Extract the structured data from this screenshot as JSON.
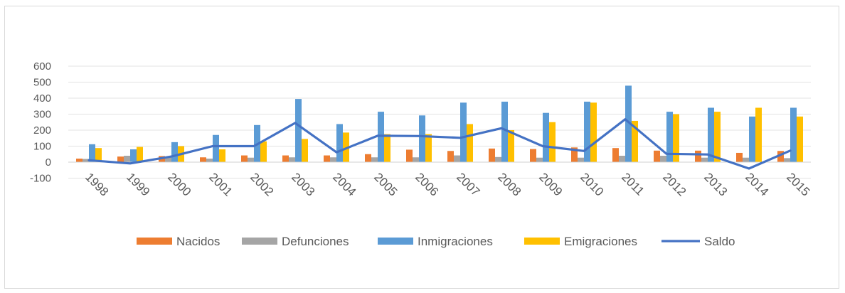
{
  "chart_data": {
    "type": "bar",
    "categories": [
      "1998",
      "1999",
      "2000",
      "2001",
      "2002",
      "2003",
      "2004",
      "2005",
      "2006",
      "2007",
      "2008",
      "2009",
      "2010",
      "2011",
      "2012",
      "2013",
      "2014",
      "2015"
    ],
    "ylim": [
      -100,
      600
    ],
    "yticks": [
      -100,
      0,
      100,
      200,
      300,
      400,
      500,
      600
    ],
    "grid": true,
    "legend_position": "bottom",
    "series": [
      {
        "name": "Nacidos",
        "kind": "bar",
        "color": "#ED7D31",
        "values": [
          22,
          35,
          38,
          30,
          42,
          42,
          42,
          50,
          78,
          70,
          85,
          82,
          92,
          88,
          72,
          72,
          58,
          70
        ]
      },
      {
        "name": "Defunciones",
        "kind": "bar",
        "color": "#A5A5A5",
        "values": [
          20,
          40,
          28,
          22,
          28,
          30,
          30,
          30,
          30,
          42,
          32,
          28,
          28,
          40,
          40,
          28,
          28,
          25
        ]
      },
      {
        "name": "Inmigraciones",
        "kind": "bar",
        "color": "#5B9BD5",
        "values": [
          112,
          80,
          125,
          170,
          232,
          395,
          238,
          315,
          292,
          372,
          378,
          308,
          378,
          478,
          315,
          340,
          285,
          340
        ]
      },
      {
        "name": "Emigraciones",
        "kind": "bar",
        "color": "#FFC000",
        "values": [
          88,
          95,
          100,
          80,
          130,
          145,
          185,
          175,
          175,
          238,
          200,
          250,
          372,
          258,
          300,
          315,
          340,
          285
        ]
      },
      {
        "name": "Saldo",
        "kind": "line",
        "color": "#4472C4",
        "values": [
          12,
          -8,
          35,
          100,
          100,
          245,
          62,
          165,
          163,
          152,
          212,
          100,
          70,
          268,
          52,
          48,
          -40,
          72
        ]
      }
    ]
  }
}
